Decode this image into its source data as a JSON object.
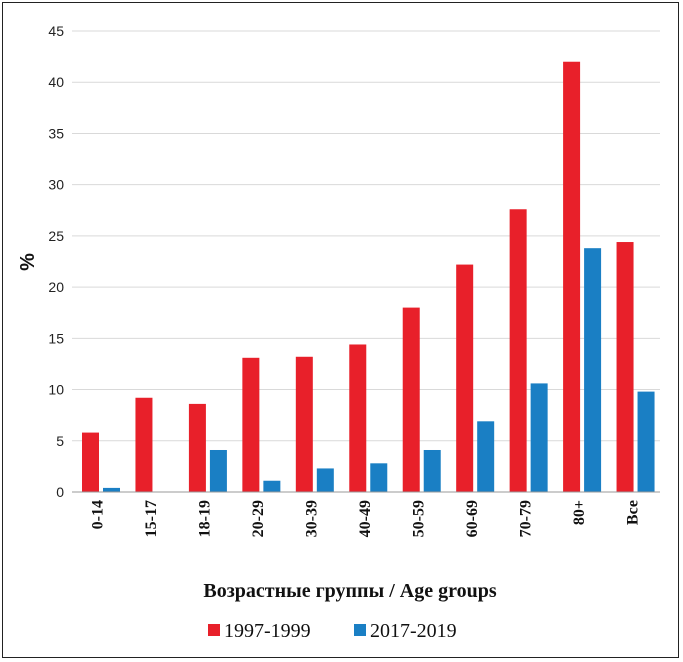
{
  "chart_data": {
    "type": "bar",
    "title": "",
    "xlabel": "Возрастные группы / Age groups",
    "ylabel": "%",
    "ylim": [
      0,
      45
    ],
    "yticks": [
      "0",
      "5",
      "10",
      "15",
      "20",
      "25",
      "30",
      "35",
      "40",
      "45"
    ],
    "grid": true,
    "legend_position": "bottom",
    "categories": [
      "0-14",
      "15-17",
      "18-19",
      "20-29",
      "30-39",
      "40-49",
      "50-59",
      "60-69",
      "70-79",
      "80+",
      "Все"
    ],
    "series": [
      {
        "name": "1997-1999",
        "color": "#e8202a",
        "values": [
          5.8,
          9.2,
          8.6,
          13.1,
          13.2,
          14.4,
          18.0,
          22.2,
          27.6,
          42.0,
          24.4
        ]
      },
      {
        "name": "2017-2019",
        "color": "#1a7fc4",
        "values": [
          0.4,
          0,
          4.1,
          1.1,
          2.3,
          2.8,
          4.1,
          6.9,
          10.6,
          23.8,
          9.8
        ]
      }
    ]
  }
}
